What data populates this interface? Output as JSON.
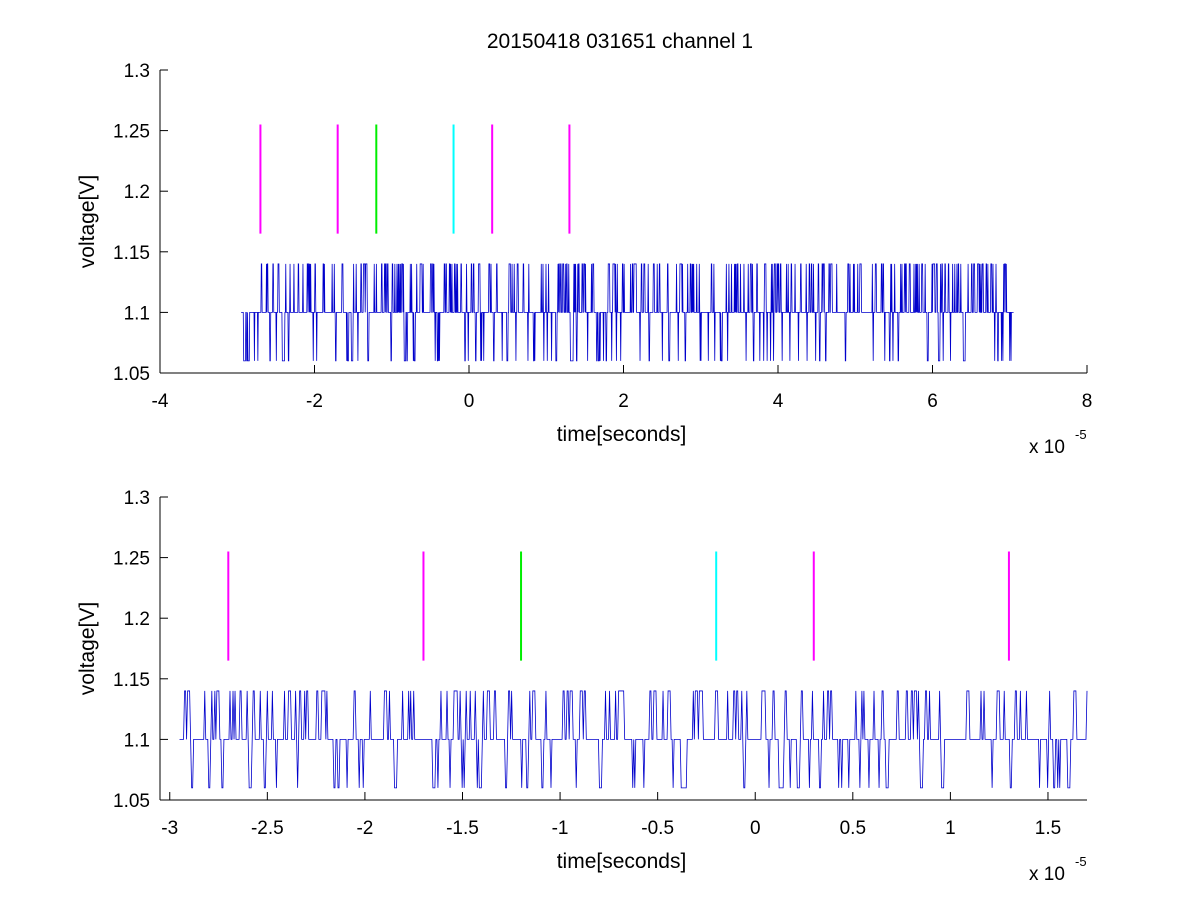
{
  "chart_data": {
    "title": "20150418 031651 channel 1",
    "signal_levels": [
      1.06,
      1.1,
      1.14
    ],
    "marker_ymin": 1.165,
    "marker_ymax": 1.255,
    "markers": [
      {
        "x": -2.7e-05,
        "color": "#ff00ff"
      },
      {
        "x": -1.7e-05,
        "color": "#ff00ff"
      },
      {
        "x": -1.2e-05,
        "color": "#00ee00"
      },
      {
        "x": -2e-06,
        "color": "#00ffff"
      },
      {
        "x": 3e-06,
        "color": "#ff00ff"
      },
      {
        "x": 1.3e-05,
        "color": "#ff00ff"
      }
    ],
    "trace_color": "#0000cc",
    "panels": [
      {
        "type": "line",
        "name": "full-view",
        "xlabel": "time[seconds]",
        "ylabel": "voltage[V]",
        "x_exponent": "x 10",
        "x_exponent_power": "-5",
        "xlim": [
          -4,
          8
        ],
        "ylim": [
          1.05,
          1.3
        ],
        "x_tick_values": [
          -4,
          -2,
          0,
          2,
          4,
          6,
          8
        ],
        "x_tick_labels": [
          "-4",
          "-2",
          "0",
          "2",
          "4",
          "6",
          "8"
        ],
        "y_tick_values": [
          1.05,
          1.1,
          1.15,
          1.2,
          1.25,
          1.3
        ],
        "y_tick_labels": [
          "1.05",
          "1.1",
          "1.15",
          "1.2",
          "1.25",
          "1.3"
        ],
        "signal_x_range": [
          -2.95e-05,
          7.05e-05
        ],
        "signal_points": 1800,
        "grid": false
      },
      {
        "type": "line",
        "name": "zoom-view",
        "xlabel": "time[seconds]",
        "ylabel": "voltage[V]",
        "x_exponent": "x 10",
        "x_exponent_power": "-5",
        "xlim": [
          -3.05,
          1.7
        ],
        "ylim": [
          1.05,
          1.3
        ],
        "x_tick_values": [
          -3,
          -2.5,
          -2,
          -1.5,
          -1,
          -0.5,
          0,
          0.5,
          1,
          1.5
        ],
        "x_tick_labels": [
          "-3",
          "-2.5",
          "-2",
          "-1.5",
          "-1",
          "-0.5",
          "0",
          "0.5",
          "1",
          "1.5"
        ],
        "y_tick_values": [
          1.05,
          1.1,
          1.15,
          1.2,
          1.25,
          1.3
        ],
        "y_tick_labels": [
          "1.05",
          "1.1",
          "1.15",
          "1.2",
          "1.25",
          "1.3"
        ],
        "signal_x_range": [
          -2.95e-05,
          1.7e-05
        ],
        "signal_points": 900,
        "grid": false
      }
    ]
  }
}
